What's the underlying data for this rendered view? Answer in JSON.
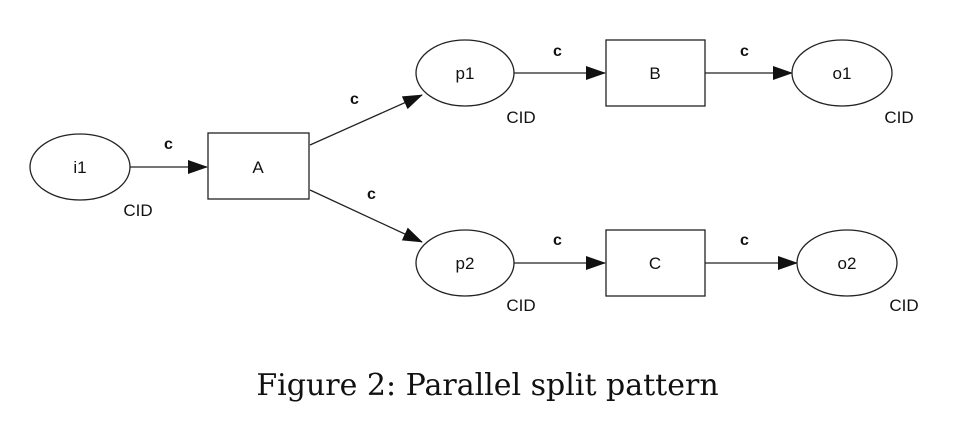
{
  "places": {
    "i1": {
      "label": "i1",
      "type": "CID"
    },
    "p1": {
      "label": "p1",
      "type": "CID"
    },
    "p2": {
      "label": "p2",
      "type": "CID"
    },
    "o1": {
      "label": "o1",
      "type": "CID"
    },
    "o2": {
      "label": "o2",
      "type": "CID"
    }
  },
  "transitions": {
    "A": {
      "label": "A"
    },
    "B": {
      "label": "B"
    },
    "C": {
      "label": "C"
    }
  },
  "arcs": [
    {
      "from": "i1",
      "to": "A",
      "label": "c"
    },
    {
      "from": "A",
      "to": "p1",
      "label": "c"
    },
    {
      "from": "A",
      "to": "p2",
      "label": "c"
    },
    {
      "from": "p1",
      "to": "B",
      "label": "c"
    },
    {
      "from": "B",
      "to": "o1",
      "label": "c"
    },
    {
      "from": "p2",
      "to": "C",
      "label": "c"
    },
    {
      "from": "C",
      "to": "o2",
      "label": "c"
    }
  ],
  "caption": "Figure 2: Parallel split pattern"
}
